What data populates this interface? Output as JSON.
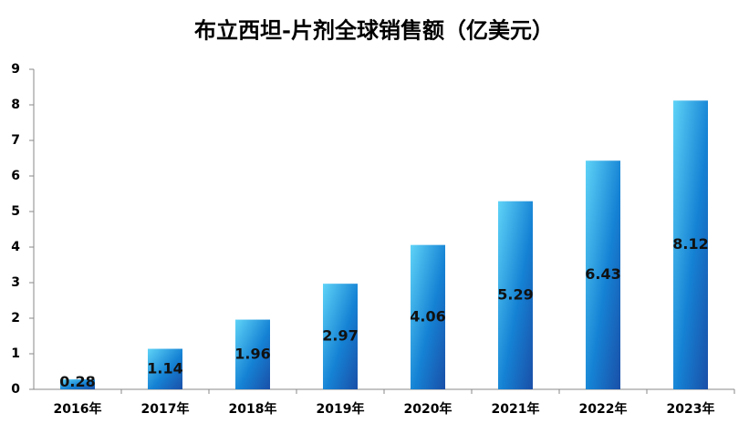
{
  "chart_data": {
    "type": "bar",
    "title": "布立西坦-片剂全球销售额（亿美元）",
    "categories": [
      "2016年",
      "2017年",
      "2018年",
      "2019年",
      "2020年",
      "2021年",
      "2022年",
      "2023年"
    ],
    "values": [
      0.28,
      1.14,
      1.96,
      2.97,
      4.06,
      5.29,
      6.43,
      8.12
    ],
    "color": "#1582d4",
    "ylim": [
      0,
      9
    ],
    "yticks": [
      0,
      1,
      2,
      3,
      4,
      5,
      6,
      7,
      8,
      9
    ],
    "grid": false
  }
}
